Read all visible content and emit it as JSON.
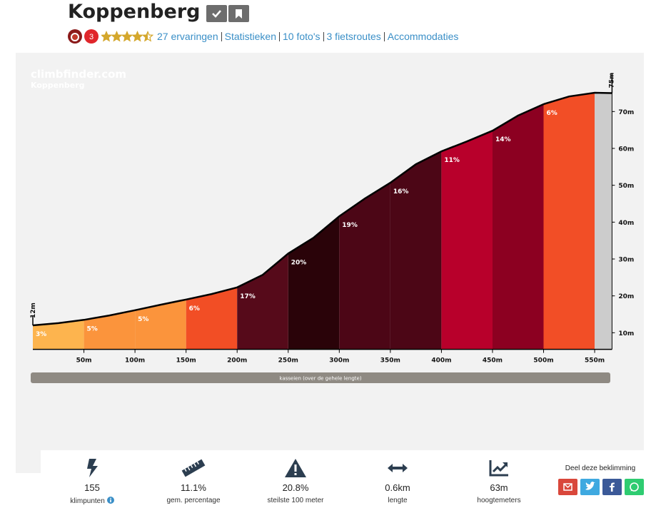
{
  "header": {
    "title": "Koppenberg",
    "badge": 3,
    "rating": 4.5,
    "links": [
      "27 ervaringen",
      "Statistieken",
      "10 foto's",
      "3 fietsroutes",
      "Accommodaties"
    ]
  },
  "chart_data": {
    "type": "area",
    "watermark": "climbfinder.com",
    "title": "Koppenberg",
    "x": [
      0,
      25,
      50,
      75,
      100,
      125,
      150,
      175,
      200,
      225,
      250,
      275,
      300,
      325,
      350,
      375,
      400,
      425,
      450,
      475,
      500,
      525,
      550,
      567
    ],
    "elevation": [
      12,
      12.6,
      13.5,
      14.7,
      16.1,
      17.6,
      19.0,
      20.5,
      22.3,
      25.7,
      31.5,
      35.8,
      41.6,
      46.4,
      50.7,
      55.7,
      59.2,
      61.9,
      64.8,
      68.9,
      72.0,
      74.1,
      75.1,
      75
    ],
    "segment_edges": [
      0,
      50,
      100,
      150,
      200,
      250,
      300,
      350,
      400,
      450,
      500,
      550
    ],
    "gradients": [
      3,
      5,
      5,
      6,
      17,
      20,
      19,
      16,
      11,
      14,
      6
    ],
    "gradient_labels": [
      "3%",
      "5%",
      "5%",
      "6%",
      "17%",
      "20%",
      "19%",
      "16%",
      "11%",
      "14%",
      "6%"
    ],
    "segment_colors": [
      "#fdb44e",
      "#fb943c",
      "#fb943c",
      "#f24e25",
      "#560a1a",
      "#2a0309",
      "#4c0616",
      "#4c0616",
      "#b8002b",
      "#8c0021",
      "#f24e26"
    ],
    "end_color": "#cccccc",
    "line_color": "#000000",
    "start_label": "12m",
    "end_label": "75m",
    "xlim": [
      0,
      567
    ],
    "ylim": [
      5.5,
      81
    ],
    "xticks": [
      {
        "value": 50,
        "label": "50m"
      },
      {
        "value": 100,
        "label": "100m"
      },
      {
        "value": 150,
        "label": "150m"
      },
      {
        "value": 200,
        "label": "200m"
      },
      {
        "value": 250,
        "label": "250m"
      },
      {
        "value": 300,
        "label": "300m"
      },
      {
        "value": 350,
        "label": "350m"
      },
      {
        "value": 400,
        "label": "400m"
      },
      {
        "value": 450,
        "label": "450m"
      },
      {
        "value": 500,
        "label": "500m"
      },
      {
        "value": 550,
        "label": "550m"
      }
    ],
    "yticks": [
      {
        "value": 10,
        "label": "10m"
      },
      {
        "value": 20,
        "label": "20m"
      },
      {
        "value": 30,
        "label": "30m"
      },
      {
        "value": 40,
        "label": "40m"
      },
      {
        "value": 50,
        "label": "50m"
      },
      {
        "value": 60,
        "label": "60m"
      },
      {
        "value": 70,
        "label": "70m"
      }
    ],
    "surface": "kasseien (over de gehele lengte)"
  },
  "stats": [
    {
      "value": "155",
      "label": "klimpunten"
    },
    {
      "value": "11.1%",
      "label": "gem. percentage"
    },
    {
      "value": "20.8%",
      "label": "steilste 100 meter"
    },
    {
      "value": "0.6km",
      "label": "lengte"
    },
    {
      "value": "63m",
      "label": "hoogtemeters"
    }
  ],
  "share": {
    "title": "Deel deze beklimming"
  }
}
